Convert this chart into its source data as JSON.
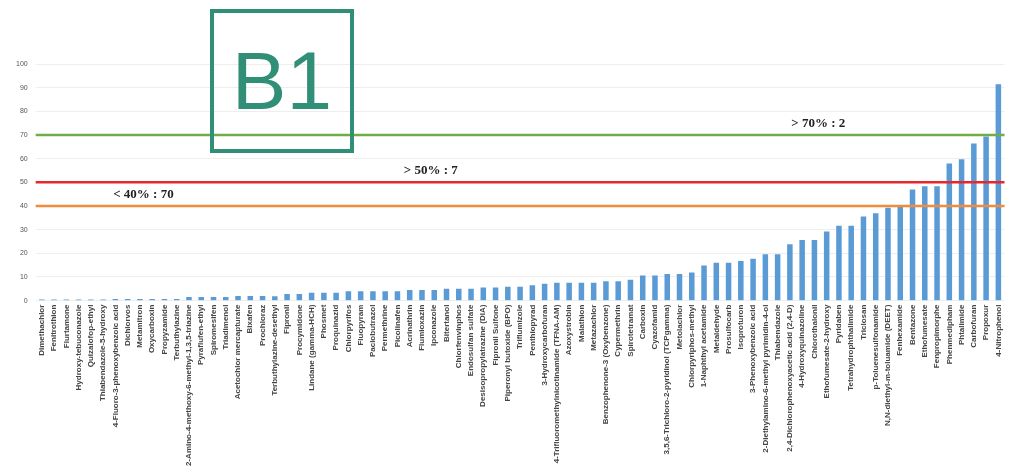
{
  "chart_data": {
    "type": "bar",
    "categories": [
      "Dimethachlor",
      "Fenitrothion",
      "Flurtamone",
      "Hydroxy-tebuconazole",
      "Quizalofop-ethyl",
      "Thiabendazole-5-hydroxy",
      "4-Fluoro-3-phenoxybenzoic acid",
      "Dichlorvos",
      "Metamitron",
      "Oxycarboxin",
      "Propyzamide",
      "Terbuthylazine",
      "2-Amino-4-methoxy-6-methyl-1,3,5-triazine",
      "Pyraflufen-ethyl",
      "Spiromesifen",
      "Triadimenol",
      "Acetochlor mercapturate",
      "Bixafen",
      "Prochloraz",
      "Terbuthylazine-desethyl",
      "Fipronil",
      "Procymidone",
      "Lindane (gamma-HCH)",
      "Phosmet",
      "Proquinazid",
      "Chlorpyrifos",
      "Fluopyram",
      "Paclobutrazol",
      "Permethrine",
      "Picolinafen",
      "Acrinathrin",
      "Flumioxazin",
      "Ipconazole",
      "Bitertanol",
      "Chlorfenvinphos",
      "Endosulfan sulfate",
      "Desisopropylatrazine (DIA)",
      "Fipronil Sulfone",
      "Piperonyl butoxide (BPO)",
      "Triflumizole",
      "Penthiopyrad",
      "3-Hydroxycarbofuran",
      "4-Trifluoromethylnicotinamide (TFNA-AM)",
      "Azoxystrobin",
      "Malathion",
      "Metazachlor",
      "Benzophenone-3 (Oxybenzone)",
      "Cypermethrin",
      "Spirotetramat",
      "Carboxin",
      "Cyazofamid",
      "3,5,6-Trichloro-2-pyridinol (TCPgamma)",
      "Metolachlor",
      "Chlorpyriphos-methyl",
      "1-Naphthyl acetamide",
      "Metaldehyde",
      "Prosulfocarb",
      "Isoproturon",
      "3-Phenoxybenzoic acid",
      "2-Diethylamino-6-methyl pyrimidin-4-ol",
      "Thiabendazole",
      "2,4-Dichlorophenoxyacetic acid (2,4-D)",
      "4-Hydroxyquinazoline",
      "Chlorothalonil",
      "Ethofumesate-2-hydroxy",
      "Pyridaben",
      "Tetrahydrophthalimide",
      "Triclosan",
      "p-Toluenesulfonamide",
      "N,N-diethyl-m-toluamide (DEET)",
      "Fenhexamide",
      "Bentazone",
      "Ethofumesate",
      "Fenpropimorphe",
      "Phenmedipham",
      "Phtalimide",
      "Carbofuran",
      "Propoxur",
      "4-Nitrophenol"
    ],
    "values": [
      0.5,
      0.5,
      0.5,
      0.5,
      0.5,
      0.5,
      0.7,
      0.7,
      0.7,
      0.7,
      0.7,
      0.7,
      1.5,
      1.5,
      1.5,
      1.5,
      2,
      2,
      2,
      1.8,
      2.8,
      2.8,
      3.3,
      3.3,
      3.3,
      4,
      4,
      4,
      4,
      4,
      4.5,
      4.5,
      4.5,
      5,
      5,
      5,
      5.5,
      5.5,
      5.9,
      5.9,
      6.5,
      7.1,
      7.6,
      7.6,
      7.6,
      7.6,
      8.2,
      8.2,
      8.8,
      10.6,
      10.6,
      11.3,
      11.3,
      11.9,
      14.8,
      16,
      16,
      16.7,
      17.7,
      19.6,
      19.6,
      23.8,
      25.6,
      25.6,
      29.2,
      31.6,
      31.6,
      35.6,
      36.9,
      39.2,
      40.4,
      47,
      48.3,
      48.3,
      57.9,
      59.7,
      66.4,
      69.4,
      91.4
    ],
    "color": "#5b9bd5",
    "ylim": [
      0,
      100
    ],
    "yticks": [
      0,
      10,
      20,
      30,
      40,
      50,
      60,
      70,
      80,
      90,
      100
    ],
    "grid": "y",
    "ref_lines": [
      {
        "axis": "y",
        "value": 70,
        "label": "> 70% : 2",
        "color": "#70ad47"
      },
      {
        "axis": "y",
        "value": 50,
        "label": "> 50% : 7",
        "color": "#e8262d"
      },
      {
        "axis": "y",
        "value": 40,
        "label": "< 40% : 70",
        "color": "#f08c3c"
      }
    ],
    "annotations": [
      "B1"
    ]
  }
}
